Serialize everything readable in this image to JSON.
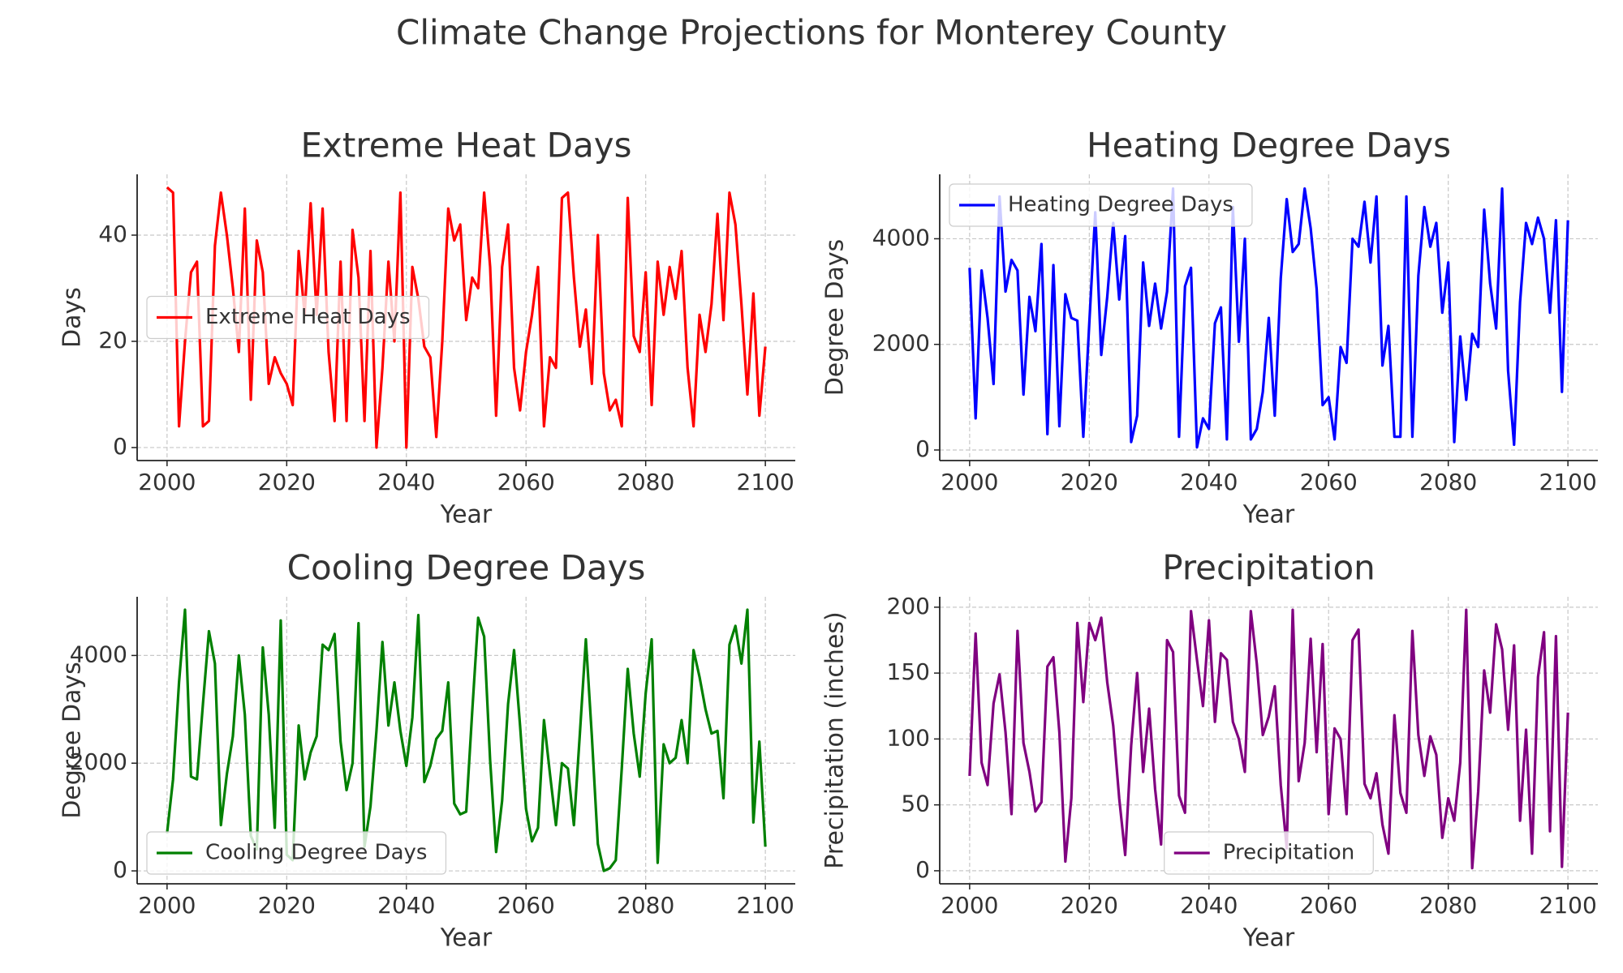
{
  "title": "Climate Change Projections for Monterey County",
  "chart_data": [
    {
      "type": "line",
      "title": "Extreme Heat Days",
      "xlabel": "Year",
      "ylabel": "Days",
      "x": [
        2000,
        2001,
        2002,
        2003,
        2004,
        2005,
        2006,
        2007,
        2008,
        2009,
        2010,
        2011,
        2012,
        2013,
        2014,
        2015,
        2016,
        2017,
        2018,
        2019,
        2020,
        2021,
        2022,
        2023,
        2024,
        2025,
        2026,
        2027,
        2028,
        2029,
        2030,
        2031,
        2032,
        2033,
        2034,
        2035,
        2036,
        2037,
        2038,
        2039,
        2040,
        2041,
        2042,
        2043,
        2044,
        2045,
        2046,
        2047,
        2048,
        2049,
        2050,
        2051,
        2052,
        2053,
        2054,
        2055,
        2056,
        2057,
        2058,
        2059,
        2060,
        2061,
        2062,
        2063,
        2064,
        2065,
        2066,
        2067,
        2068,
        2069,
        2070,
        2071,
        2072,
        2073,
        2074,
        2075,
        2076,
        2077,
        2078,
        2079,
        2080,
        2081,
        2082,
        2083,
        2084,
        2085,
        2086,
        2087,
        2088,
        2089,
        2090,
        2091,
        2092,
        2093,
        2094,
        2095,
        2096,
        2097,
        2098,
        2099,
        2100
      ],
      "series": [
        {
          "name": "Extreme Heat Days",
          "color": "#ff0000",
          "values": [
            49,
            48,
            4,
            20,
            33,
            35,
            4,
            5,
            38,
            48,
            40,
            30,
            18,
            45,
            9,
            39,
            33,
            12,
            17,
            14,
            12,
            8,
            37,
            25,
            46,
            25,
            45,
            18,
            5,
            35,
            5,
            41,
            32,
            5,
            37,
            0,
            15,
            35,
            20,
            48,
            0,
            34,
            28,
            19,
            17,
            2,
            20,
            45,
            39,
            42,
            24,
            32,
            30,
            48,
            34,
            6,
            34,
            42,
            15,
            7,
            18,
            25,
            34,
            4,
            17,
            15,
            47,
            48,
            32,
            19,
            26,
            12,
            40,
            14,
            7,
            9,
            4,
            47,
            21,
            18,
            33,
            8,
            35,
            25,
            34,
            28,
            37,
            15,
            4,
            25,
            18,
            27,
            44,
            24,
            48,
            42,
            27,
            10,
            29,
            6,
            19
          ]
        }
      ],
      "xlim": [
        1995,
        2105
      ],
      "xticks": [
        2000,
        2020,
        2040,
        2060,
        2080,
        2100
      ],
      "ylim": [
        -2.45,
        51.45
      ],
      "yticks": [
        0,
        20,
        40
      ],
      "grid": true,
      "legend_loc": "center left"
    },
    {
      "type": "line",
      "title": "Heating Degree Days",
      "xlabel": "Year",
      "ylabel": "Degree Days",
      "x": [
        2000,
        2001,
        2002,
        2003,
        2004,
        2005,
        2006,
        2007,
        2008,
        2009,
        2010,
        2011,
        2012,
        2013,
        2014,
        2015,
        2016,
        2017,
        2018,
        2019,
        2020,
        2021,
        2022,
        2023,
        2024,
        2025,
        2026,
        2027,
        2028,
        2029,
        2030,
        2031,
        2032,
        2033,
        2034,
        2035,
        2036,
        2037,
        2038,
        2039,
        2040,
        2041,
        2042,
        2043,
        2044,
        2045,
        2046,
        2047,
        2048,
        2049,
        2050,
        2051,
        2052,
        2053,
        2054,
        2055,
        2056,
        2057,
        2058,
        2059,
        2060,
        2061,
        2062,
        2063,
        2064,
        2065,
        2066,
        2067,
        2068,
        2069,
        2070,
        2071,
        2072,
        2073,
        2074,
        2075,
        2076,
        2077,
        2078,
        2079,
        2080,
        2081,
        2082,
        2083,
        2084,
        2085,
        2086,
        2087,
        2088,
        2089,
        2090,
        2091,
        2092,
        2093,
        2094,
        2095,
        2096,
        2097,
        2098,
        2099,
        2100
      ],
      "series": [
        {
          "name": "Heating Degree Days",
          "color": "#0000ff",
          "values": [
            3450,
            600,
            3400,
            2500,
            1250,
            4800,
            3000,
            3600,
            3400,
            1050,
            2900,
            2250,
            3900,
            300,
            3500,
            450,
            2950,
            2500,
            2450,
            250,
            2400,
            4500,
            1800,
            2900,
            4300,
            2850,
            4050,
            150,
            650,
            3550,
            2350,
            3150,
            2300,
            3000,
            4950,
            250,
            3100,
            3450,
            50,
            600,
            400,
            2400,
            2700,
            200,
            4600,
            2050,
            4000,
            200,
            400,
            1100,
            2500,
            650,
            3250,
            4750,
            3750,
            3900,
            4950,
            4200,
            3050,
            850,
            1000,
            200,
            1950,
            1650,
            4000,
            3850,
            4700,
            3550,
            4800,
            1600,
            2350,
            250,
            250,
            4800,
            250,
            3300,
            4600,
            3850,
            4300,
            2600,
            3550,
            150,
            2150,
            950,
            2200,
            1950,
            4550,
            3150,
            2300,
            4950,
            1500,
            100,
            2800,
            4300,
            3900,
            4400,
            4000,
            2600,
            4350,
            1100,
            4350
          ]
        }
      ],
      "xlim": [
        1995,
        2105
      ],
      "xticks": [
        2000,
        2020,
        2040,
        2060,
        2080,
        2100
      ],
      "ylim": [
        -200,
        5220
      ],
      "yticks": [
        0,
        2000,
        4000
      ],
      "grid": true,
      "legend_loc": "upper left"
    },
    {
      "type": "line",
      "title": "Cooling Degree Days",
      "xlabel": "Year",
      "ylabel": "Degree Days",
      "x": [
        2000,
        2001,
        2002,
        2003,
        2004,
        2005,
        2006,
        2007,
        2008,
        2009,
        2010,
        2011,
        2012,
        2013,
        2014,
        2015,
        2016,
        2017,
        2018,
        2019,
        2020,
        2021,
        2022,
        2023,
        2024,
        2025,
        2026,
        2027,
        2028,
        2029,
        2030,
        2031,
        2032,
        2033,
        2034,
        2035,
        2036,
        2037,
        2038,
        2039,
        2040,
        2041,
        2042,
        2043,
        2044,
        2045,
        2046,
        2047,
        2048,
        2049,
        2050,
        2051,
        2052,
        2053,
        2054,
        2055,
        2056,
        2057,
        2058,
        2059,
        2060,
        2061,
        2062,
        2063,
        2064,
        2065,
        2066,
        2067,
        2068,
        2069,
        2070,
        2071,
        2072,
        2073,
        2074,
        2075,
        2076,
        2077,
        2078,
        2079,
        2080,
        2081,
        2082,
        2083,
        2084,
        2085,
        2086,
        2087,
        2088,
        2089,
        2090,
        2091,
        2092,
        2093,
        2094,
        2095,
        2096,
        2097,
        2098,
        2099,
        2100
      ],
      "series": [
        {
          "name": "Cooling Degree Days",
          "color": "#008000",
          "values": [
            700,
            1700,
            3500,
            4850,
            1750,
            1700,
            3100,
            4450,
            3850,
            850,
            1800,
            2500,
            4000,
            2900,
            650,
            400,
            4150,
            2900,
            800,
            4650,
            300,
            200,
            2700,
            1700,
            2200,
            2500,
            4200,
            4100,
            4400,
            2400,
            1500,
            2000,
            4600,
            450,
            1200,
            2600,
            4250,
            2700,
            3500,
            2600,
            1950,
            2850,
            4750,
            1650,
            1950,
            2450,
            2600,
            3500,
            1250,
            1050,
            1100,
            2950,
            4700,
            4350,
            2050,
            350,
            1300,
            3100,
            4100,
            2700,
            1150,
            550,
            800,
            2800,
            1800,
            850,
            2000,
            1900,
            850,
            2550,
            4300,
            2500,
            500,
            0,
            50,
            200,
            1900,
            3750,
            2550,
            1750,
            3300,
            4300,
            150,
            2350,
            2000,
            2100,
            2800,
            2000,
            4100,
            3600,
            3000,
            2550,
            2600,
            1350,
            4200,
            4550,
            3850,
            4850,
            900,
            2400,
            450
          ]
        }
      ],
      "xlim": [
        1995,
        2105
      ],
      "xticks": [
        2000,
        2020,
        2040,
        2060,
        2080,
        2100
      ],
      "ylim": [
        -240,
        5090
      ],
      "yticks": [
        0,
        2000,
        4000
      ],
      "grid": true,
      "legend_loc": "lower left"
    },
    {
      "type": "line",
      "title": "Precipitation",
      "xlabel": "Year",
      "ylabel": "Precipitation (inches)",
      "x": [
        2000,
        2001,
        2002,
        2003,
        2004,
        2005,
        2006,
        2007,
        2008,
        2009,
        2010,
        2011,
        2012,
        2013,
        2014,
        2015,
        2016,
        2017,
        2018,
        2019,
        2020,
        2021,
        2022,
        2023,
        2024,
        2025,
        2026,
        2027,
        2028,
        2029,
        2030,
        2031,
        2032,
        2033,
        2034,
        2035,
        2036,
        2037,
        2038,
        2039,
        2040,
        2041,
        2042,
        2043,
        2044,
        2045,
        2046,
        2047,
        2048,
        2049,
        2050,
        2051,
        2052,
        2053,
        2054,
        2055,
        2056,
        2057,
        2058,
        2059,
        2060,
        2061,
        2062,
        2063,
        2064,
        2065,
        2066,
        2067,
        2068,
        2069,
        2070,
        2071,
        2072,
        2073,
        2074,
        2075,
        2076,
        2077,
        2078,
        2079,
        2080,
        2081,
        2082,
        2083,
        2084,
        2085,
        2086,
        2087,
        2088,
        2089,
        2090,
        2091,
        2092,
        2093,
        2094,
        2095,
        2096,
        2097,
        2098,
        2099,
        2100
      ],
      "series": [
        {
          "name": "Precipitation",
          "color": "#800080",
          "values": [
            72,
            180,
            82,
            65,
            127,
            149,
            105,
            43,
            182,
            97,
            75,
            45,
            52,
            155,
            162,
            105,
            7,
            55,
            188,
            128,
            188,
            175,
            192,
            143,
            110,
            55,
            12,
            95,
            150,
            75,
            123,
            62,
            20,
            175,
            166,
            57,
            44,
            197,
            160,
            125,
            190,
            113,
            165,
            160,
            113,
            100,
            75,
            197,
            157,
            103,
            117,
            140,
            65,
            17,
            198,
            68,
            97,
            176,
            90,
            172,
            43,
            108,
            100,
            43,
            175,
            183,
            66,
            55,
            74,
            35,
            13,
            118,
            59,
            44,
            182,
            103,
            72,
            102,
            88,
            25,
            55,
            38,
            82,
            198,
            2,
            60,
            152,
            120,
            187,
            168,
            107,
            171,
            38,
            107,
            13,
            147,
            181,
            30,
            178,
            3,
            120
          ]
        }
      ],
      "xlim": [
        1995,
        2105
      ],
      "xticks": [
        2000,
        2020,
        2040,
        2060,
        2080,
        2100
      ],
      "ylim": [
        -9.9,
        207.9
      ],
      "yticks": [
        0,
        50,
        100,
        150,
        200
      ],
      "grid": true,
      "legend_loc": "lower center"
    }
  ]
}
